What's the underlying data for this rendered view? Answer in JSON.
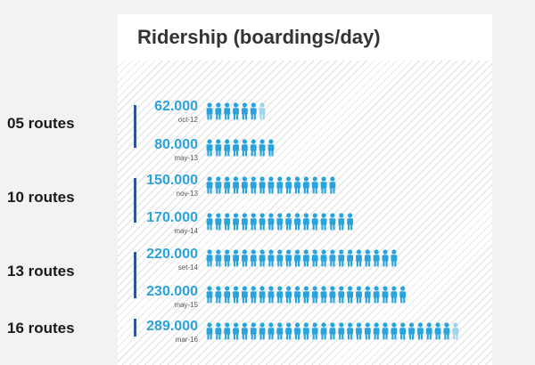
{
  "chart_data": {
    "type": "bar",
    "title": "Ridership (boardings/day)",
    "groups": [
      {
        "label": "05 routes",
        "rows": [
          0,
          1
        ]
      },
      {
        "label": "10 routes",
        "rows": [
          2,
          3
        ]
      },
      {
        "label": "13 routes",
        "rows": [
          4,
          5
        ]
      },
      {
        "label": "16 routes",
        "rows": [
          6
        ]
      }
    ],
    "categories": [
      "oct-12",
      "may-13",
      "nov-13",
      "may-14",
      "set-14",
      "may-15",
      "mar-16"
    ],
    "values": [
      62000,
      80000,
      150000,
      170000,
      220000,
      230000,
      289000
    ],
    "value_labels": [
      "62.000",
      "80.000",
      "150.000",
      "170.000",
      "220.000",
      "230.000",
      "289.000"
    ],
    "units_per_person_icon": 10000,
    "colors": {
      "icon": "#29a3dc",
      "icon_partial": "#9fd4ee",
      "bracket": "#2e5597"
    }
  }
}
